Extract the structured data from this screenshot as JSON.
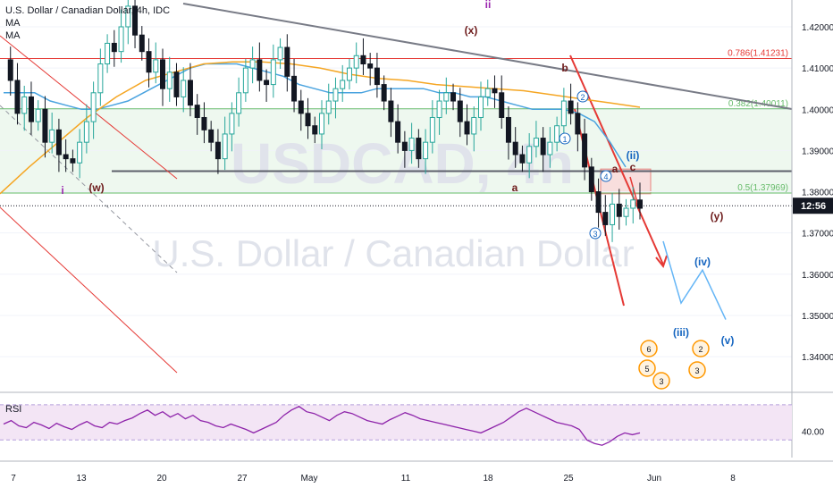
{
  "header": {
    "symbol_title": "U.S. Dollar / Canadian Dollar, 4h, IDC",
    "indicator_1": "MA",
    "indicator_2": "MA"
  },
  "watermark": {
    "ticker": "USDCAD, 4h",
    "name": "U.S. Dollar / Canadian Dollar"
  },
  "colors": {
    "up_candle": "#26a69a",
    "down_candle": "#131722",
    "fib_red": "#e53935",
    "fib_green": "#66bb6a",
    "zone_fill": "#e8f5e9",
    "ma_blue": "#4aa3df",
    "ma_orange": "#f5a623",
    "rsi_line": "#8e24aa",
    "rsi_fill": "#f3e5f5",
    "trend_gray": "#787b86",
    "wave_purple": "#9c27b0",
    "wave_brown": "#6d1b1b",
    "wave_blue": "#1565c0",
    "price_tag": "#131722"
  },
  "chart_data": {
    "type": "candlestick",
    "symbol": "USDCAD",
    "timeframe": "4h",
    "x_tick_labels": [
      "7",
      "13",
      "20",
      "27",
      "May",
      "11",
      "18",
      "25",
      "Jun",
      "8"
    ],
    "y_tick_labels": [
      "1.42000",
      "1.41000",
      "1.40000",
      "1.39000",
      "1.38000",
      "1.37000",
      "1.36000",
      "1.35000",
      "1.34000"
    ],
    "y_ticks": [
      1.42,
      1.41,
      1.4,
      1.39,
      1.38,
      1.37,
      1.36,
      1.35,
      1.34
    ],
    "ylim": [
      1.332,
      1.4265
    ],
    "current_price_label": "12:56",
    "current_price": 1.3766,
    "fib_levels": [
      {
        "label": "0.786(1.41231)",
        "value": 1.41231
      },
      {
        "label": "0.382(1.40011)",
        "value": 1.40011
      },
      {
        "label": "0.5(1.37969)",
        "value": 1.37969
      }
    ],
    "support_line": 1.385,
    "close_path": [
      1.412,
      1.407,
      1.399,
      1.403,
      1.397,
      1.4,
      1.392,
      1.395,
      1.389,
      1.388,
      1.387,
      1.392,
      1.397,
      1.404,
      1.411,
      1.416,
      1.414,
      1.42,
      1.425,
      1.418,
      1.414,
      1.409,
      1.412,
      1.405,
      1.409,
      1.403,
      1.407,
      1.401,
      1.398,
      1.395,
      1.392,
      1.388,
      1.394,
      1.399,
      1.404,
      1.41,
      1.412,
      1.407,
      1.406,
      1.412,
      1.415,
      1.408,
      1.402,
      1.399,
      1.396,
      1.394,
      1.399,
      1.402,
      1.405,
      1.407,
      1.41,
      1.413,
      1.411,
      1.41,
      1.406,
      1.402,
      1.397,
      1.392,
      1.39,
      1.393,
      1.388,
      1.392,
      1.398,
      1.402,
      1.404,
      1.402,
      1.397,
      1.394,
      1.398,
      1.403,
      1.405,
      1.404,
      1.398,
      1.392,
      1.389,
      1.387,
      1.391,
      1.393,
      1.389,
      1.392,
      1.396,
      1.402,
      1.399,
      1.394,
      1.386,
      1.38,
      1.375,
      1.372,
      1.377,
      1.374,
      1.376,
      1.378,
      1.376
    ],
    "ma_blue_path": [
      1.404,
      1.404,
      1.404,
      1.402,
      1.401,
      1.4,
      1.4,
      1.401,
      1.402,
      1.404,
      1.406,
      1.408,
      1.41,
      1.411,
      1.411,
      1.411,
      1.41,
      1.409,
      1.408,
      1.406,
      1.405,
      1.404,
      1.404,
      1.404,
      1.405,
      1.405,
      1.405,
      1.405,
      1.404,
      1.404,
      1.403,
      1.403,
      1.402,
      1.401,
      1.4,
      1.4,
      1.4,
      1.399,
      1.397,
      1.392,
      1.386
    ],
    "ma_orange_path": [
      1.3795,
      1.386,
      1.392,
      1.398,
      1.403,
      1.407,
      1.409,
      1.411,
      1.4115,
      1.4115,
      1.411,
      1.41,
      1.4085,
      1.4075,
      1.407,
      1.406,
      1.4055,
      1.405,
      1.4045,
      1.4035,
      1.4025,
      1.4015,
      1.4005
    ],
    "projection_path": [
      1.368,
      1.353,
      1.361,
      1.349
    ],
    "rsi": {
      "label": "RSI",
      "tick_label": "40.00",
      "upper_band": 70,
      "lower_band": 30,
      "values": [
        48,
        52,
        46,
        44,
        50,
        47,
        43,
        49,
        45,
        42,
        47,
        51,
        46,
        44,
        50,
        48,
        52,
        55,
        60,
        64,
        58,
        62,
        56,
        60,
        54,
        58,
        52,
        50,
        46,
        44,
        48,
        45,
        42,
        38,
        42,
        46,
        50,
        58,
        64,
        68,
        62,
        60,
        56,
        52,
        58,
        62,
        60,
        56,
        52,
        50,
        48,
        53,
        57,
        61,
        58,
        54,
        52,
        50,
        48,
        46,
        44,
        42,
        40,
        38,
        42,
        46,
        50,
        56,
        62,
        66,
        62,
        58,
        54,
        50,
        48,
        46,
        42,
        30,
        26,
        24,
        28,
        34,
        38,
        36,
        38
      ]
    }
  },
  "annotations": {
    "waves": [
      {
        "text": "ii",
        "color": "wave_purple"
      },
      {
        "text": "(x)",
        "color": "wave_brown"
      },
      {
        "text": "b",
        "color": "wave_brown"
      },
      {
        "text": "i",
        "color": "wave_purple"
      },
      {
        "text": "(w)",
        "color": "wave_brown"
      },
      {
        "text": "a",
        "color": "wave_brown"
      },
      {
        "text": "a",
        "color": "wave_brown"
      },
      {
        "text": "c",
        "color": "wave_brown"
      },
      {
        "text": "(y)",
        "color": "wave_brown"
      },
      {
        "text": "(ii)",
        "color": "wave_blue"
      },
      {
        "text": "(iv)",
        "color": "wave_blue"
      },
      {
        "text": "(iii)",
        "color": "wave_blue"
      },
      {
        "text": "(v)",
        "color": "wave_blue"
      },
      {
        "text": "1",
        "color": "wave_blue"
      },
      {
        "text": "2",
        "color": "wave_blue"
      },
      {
        "text": "3",
        "color": "wave_blue"
      },
      {
        "text": "4",
        "color": "wave_blue"
      }
    ],
    "event_badges": [
      "6",
      "5",
      "3",
      "2",
      "3"
    ]
  }
}
